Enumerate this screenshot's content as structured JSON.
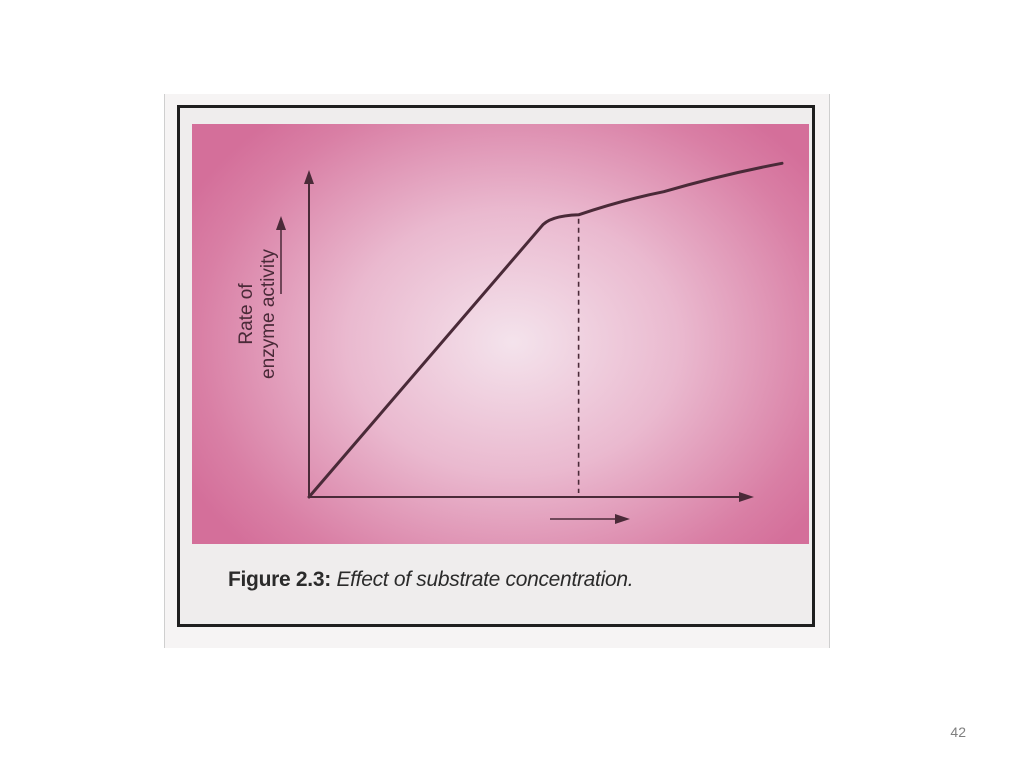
{
  "slide": {
    "page_number": "42"
  },
  "figure": {
    "caption_label": "Figure 2.3:",
    "caption_text": "Effect of substrate concentration."
  },
  "chart_data": {
    "type": "line",
    "title": "",
    "xlabel": "",
    "ylabel": "Rate of enzyme activity",
    "xlim": [
      0,
      10
    ],
    "ylim": [
      0,
      10
    ],
    "x_tick_labels": [],
    "y_tick_labels": [],
    "series": [
      {
        "name": "",
        "x": [
          0,
          4.9,
          5.7,
          7.5,
          10
        ],
        "y": [
          0,
          7.6,
          7.95,
          8.6,
          9.4
        ]
      }
    ],
    "reference_lines": [
      {
        "orientation": "vertical",
        "x": 5.7,
        "style": "dashed"
      }
    ],
    "direction_arrows": [
      "x-axis",
      "y-axis"
    ],
    "grid": false,
    "legend": "none",
    "colors": {
      "background_edge": "#d46f9a",
      "background_center": "#f4e3ec",
      "line": "#4a2a38"
    }
  }
}
